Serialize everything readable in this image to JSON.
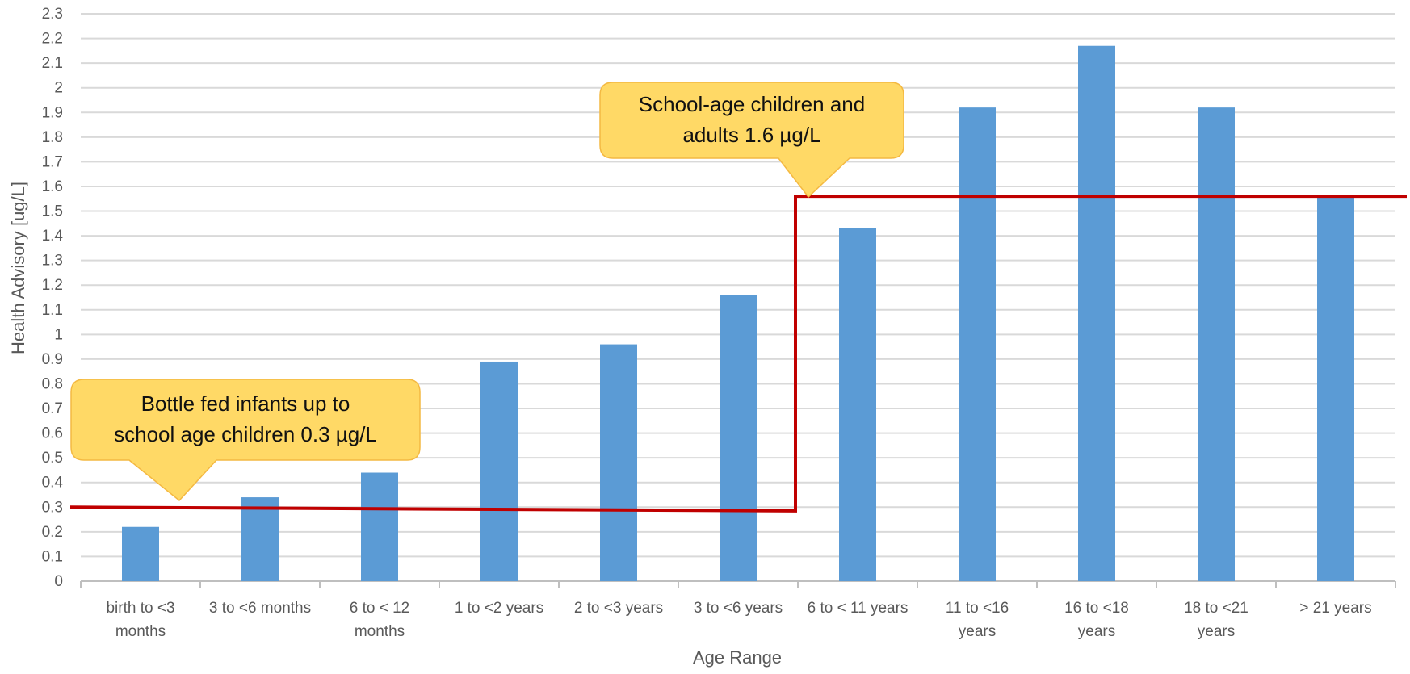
{
  "chart_data": {
    "type": "bar",
    "categories": [
      "birth to <3 months",
      "3 to <6 months",
      "6 to < 12 months",
      "1 to <2 years",
      "2 to <3 years",
      "3 to <6 years",
      "6 to < 11 years",
      "11 to <16 years",
      "16 to <18 years",
      "18 to <21 years",
      "> 21 years"
    ],
    "category_label_lines": [
      [
        "birth to <3",
        "months"
      ],
      [
        "3 to <6 months"
      ],
      [
        "6 to < 12",
        "months"
      ],
      [
        "1 to <2 years"
      ],
      [
        "2 to <3 years"
      ],
      [
        "3 to <6 years"
      ],
      [
        "6 to < 11 years"
      ],
      [
        "11 to <16",
        "years"
      ],
      [
        "16 to <18",
        "years"
      ],
      [
        "18 to <21",
        "years"
      ],
      [
        "> 21 years"
      ]
    ],
    "values": [
      0.22,
      0.34,
      0.44,
      0.89,
      0.96,
      1.16,
      1.43,
      1.92,
      2.17,
      1.92,
      1.56
    ],
    "ylabel": "Health Advisory [ug/L]",
    "xlabel": "Age Range",
    "ylim": [
      0,
      2.3
    ],
    "yticks": [
      0,
      0.1,
      0.2,
      0.3,
      0.4,
      0.5,
      0.6,
      0.7,
      0.8,
      0.9,
      1,
      1.1,
      1.2,
      1.3,
      1.4,
      1.5,
      1.6,
      1.7,
      1.8,
      1.9,
      2,
      2.1,
      2.2,
      2.3
    ],
    "grid": true,
    "colors": {
      "bar": "#5b9bd5",
      "line": "#c00000",
      "grid": "#d9d9d9",
      "callout_fill": "#ffd966",
      "callout_stroke": "#f4b942"
    },
    "advisory_line": [
      {
        "from_category": 0,
        "to_category": 5,
        "y_start": 0.3,
        "y_end": 0.285
      },
      {
        "from_category": 6,
        "to_category": 10,
        "y": 1.56
      }
    ],
    "annotations": [
      {
        "lines": [
          "Bottle fed infants up to",
          "school age children 0.3 µg/L"
        ]
      },
      {
        "lines": [
          "School-age children and",
          "adults 1.6 µg/L"
        ]
      }
    ]
  }
}
